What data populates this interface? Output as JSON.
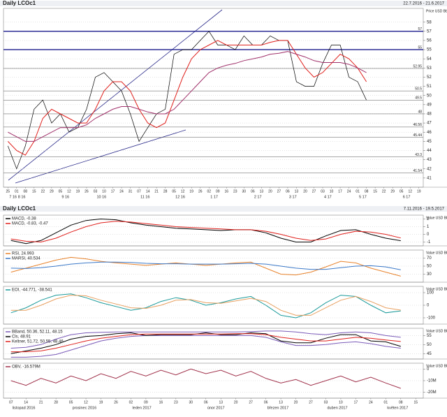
{
  "chart_data": [
    {
      "type": "line",
      "title": "Daily LCOc1",
      "subtitle": "22.7.2016 - 21.6.2017",
      "unit": "Price USD Bbl",
      "categories": [
        "25",
        "01",
        "08",
        "15",
        "22",
        "29",
        "05",
        "12",
        "19",
        "26",
        "03",
        "10",
        "17",
        "24",
        "31",
        "07",
        "14",
        "21",
        "28",
        "05",
        "12",
        "19",
        "26",
        "02",
        "09",
        "16",
        "23",
        "30",
        "06",
        "13",
        "20",
        "27",
        "06",
        "13",
        "20",
        "27",
        "03",
        "10",
        "17",
        "24",
        "01",
        "08",
        "15",
        "22",
        "29",
        "05",
        "12",
        "19"
      ],
      "month_labels": [
        "7 16",
        "8 16",
        null,
        null,
        null,
        null,
        "9 16",
        null,
        null,
        null,
        "10 16",
        null,
        null,
        null,
        null,
        "11 16",
        null,
        null,
        null,
        "12 16",
        null,
        null,
        null,
        "1 17",
        null,
        null,
        null,
        null,
        "2 17",
        null,
        null,
        null,
        "3 17",
        null,
        null,
        null,
        "4 17",
        null,
        null,
        null,
        "5 17",
        null,
        null,
        null,
        null,
        "6 17",
        null,
        null
      ],
      "series": [
        {
          "color": "#000000",
          "values": [
            44.5,
            42,
            44.5,
            48.5,
            49.5,
            47,
            48,
            46,
            46.5,
            48.5,
            52,
            52.5,
            51.5,
            50.5,
            48,
            45,
            46.5,
            48,
            48.5,
            54.5,
            55,
            55,
            56,
            57,
            55.5,
            55.5,
            55,
            56.5,
            55.5,
            55.5,
            56.5,
            56,
            56,
            51.5,
            51,
            51,
            53.5,
            55.5,
            55.5,
            52,
            51.5,
            49.5,
            null,
            null,
            null,
            null,
            null,
            null
          ]
        },
        {
          "color": "#e0201c",
          "values": [
            45,
            44,
            43.5,
            45,
            47.5,
            48.5,
            48,
            47.5,
            47,
            47,
            48.5,
            50.5,
            51.5,
            51.5,
            50.5,
            48.5,
            47,
            46.5,
            47,
            49.5,
            52,
            54,
            55,
            55.5,
            56,
            55.5,
            55.5,
            55.5,
            55.5,
            55.5,
            55.8,
            56,
            56,
            54.5,
            53,
            52,
            52.5,
            53.5,
            54.5,
            54,
            53,
            51.5,
            null,
            null,
            null,
            null,
            null,
            null
          ]
        },
        {
          "color": "#a0306a",
          "values": [
            46,
            45.5,
            45,
            45,
            45.5,
            46,
            46.5,
            46.5,
            46.5,
            46.8,
            47.5,
            48,
            48.5,
            48.8,
            48.8,
            48.5,
            48.2,
            48,
            48,
            48.5,
            49.5,
            50.5,
            51.5,
            52.5,
            53,
            53.3,
            53.5,
            53.8,
            54,
            54.2,
            54.5,
            54.6,
            54.8,
            54.5,
            54.2,
            53.8,
            53.6,
            53.6,
            53.6,
            53.4,
            53,
            52.5,
            null,
            null,
            null,
            null,
            null,
            null
          ]
        }
      ],
      "levels": [
        57,
        55,
        52.95,
        50.5,
        49.5,
        48,
        46.56,
        45.44,
        43.3,
        41.54
      ],
      "level_color": "#1a1a8c",
      "ylim": [
        40,
        59.5
      ],
      "yticks": [
        41,
        42,
        43,
        44,
        45,
        46,
        47,
        48,
        49,
        50,
        51,
        52,
        53,
        54,
        55,
        56,
        57,
        58
      ]
    },
    {
      "type": "line",
      "title": "Daily LCOc1",
      "subtitle": "7.11.2016 - 19.5.2017",
      "unit": "Value USD Bbl",
      "series": [
        {
          "name": "MACD, -0.38",
          "color": "#000000",
          "values": [
            -0.8,
            -1.2,
            -0.8,
            0.2,
            1.2,
            1.8,
            2.0,
            1.9,
            1.5,
            1.2,
            1.0,
            0.8,
            0.7,
            0.6,
            0.5,
            0.6,
            0.6,
            0.2,
            -0.5,
            -1.0,
            -1.0,
            -0.2,
            0.5,
            0.6,
            0.0,
            -0.5,
            -0.83,
            null
          ]
        },
        {
          "name": "MACD, -0.83, -0.47",
          "color": "#e0201c",
          "values": [
            -0.6,
            -0.9,
            -1.0,
            -0.5,
            0.3,
            1.0,
            1.5,
            1.7,
            1.6,
            1.4,
            1.2,
            1.0,
            0.9,
            0.8,
            0.7,
            0.6,
            0.6,
            0.4,
            0.0,
            -0.5,
            -0.8,
            -0.6,
            0.0,
            0.4,
            0.3,
            0.0,
            -0.47,
            null
          ]
        }
      ],
      "ylim": [
        -1.5,
        2.5
      ],
      "yticks": [
        -1,
        0,
        1,
        2
      ]
    },
    {
      "type": "line",
      "unit": "Value USD Bbl",
      "series": [
        {
          "name": "RSI, 24.993",
          "color": "#e8822a",
          "values": [
            35,
            45,
            55,
            65,
            72,
            68,
            62,
            58,
            55,
            52,
            55,
            58,
            55,
            52,
            55,
            58,
            60,
            45,
            30,
            28,
            35,
            48,
            62,
            58,
            45,
            35,
            25,
            null
          ]
        },
        {
          "name": "MARSI, 40.534",
          "color": "#3a78c8",
          "values": [
            45,
            44,
            46,
            50,
            55,
            58,
            60,
            60,
            59,
            57,
            56,
            56,
            55,
            55,
            55,
            56,
            57,
            55,
            50,
            45,
            42,
            42,
            46,
            50,
            51,
            48,
            41,
            null
          ]
        }
      ],
      "ylim": [
        10,
        90
      ],
      "yticks": [
        30,
        50,
        70
      ]
    },
    {
      "type": "line",
      "unit": "Value USD Bbl",
      "series": [
        {
          "name": "EOI, -44.771, -38.541",
          "color": "#1a9a9a",
          "values": [
            -60,
            -20,
            40,
            80,
            90,
            60,
            20,
            -10,
            -40,
            -20,
            30,
            60,
            40,
            0,
            20,
            50,
            70,
            0,
            -80,
            -100,
            -60,
            20,
            80,
            70,
            0,
            -60,
            -45,
            null
          ]
        },
        {
          "color": "#e8a060",
          "values": [
            -40,
            -40,
            0,
            50,
            80,
            75,
            40,
            10,
            -20,
            -25,
            0,
            40,
            45,
            20,
            15,
            35,
            55,
            30,
            -40,
            -80,
            -80,
            -20,
            40,
            70,
            30,
            -20,
            -39,
            null
          ]
        }
      ],
      "ylim": [
        -150,
        150
      ],
      "yticks": [
        -100,
        0,
        100
      ]
    },
    {
      "type": "line",
      "unit": "Value USD Bbl",
      "series": [
        {
          "name": "BBand, 50.36, 52.11, 48.15",
          "color": "#7a5ab8",
          "values": [
            48,
            48.5,
            50,
            53,
            55.5,
            56.5,
            56.8,
            57,
            57,
            57,
            57,
            57,
            57,
            57,
            57,
            57,
            57.2,
            57.5,
            57.5,
            57,
            56,
            55.5,
            56.5,
            57,
            56.5,
            55,
            54,
            null
          ]
        },
        {
          "color": "#7a5ab8",
          "values": [
            43,
            43,
            43.5,
            44.5,
            47,
            49.5,
            52,
            53.5,
            54.5,
            55,
            55,
            55,
            55,
            55,
            55,
            55,
            55,
            54,
            51.5,
            49.5,
            49.5,
            50,
            51,
            51.5,
            50.5,
            49,
            48,
            null
          ]
        },
        {
          "name": "Cls, 48.91",
          "color": "#000000",
          "values": [
            45,
            46.5,
            48,
            50,
            53,
            54.5,
            55,
            56,
            56.5,
            55,
            55.5,
            55.5,
            55.5,
            56.5,
            55.5,
            55.5,
            56.5,
            56,
            52,
            51,
            51,
            53.5,
            55.5,
            55.5,
            52,
            51.5,
            49,
            null
          ]
        },
        {
          "name": "Keltner, 51.72, 50.55, 48.46",
          "color": "#e0201c",
          "values": [
            46,
            46,
            46.5,
            48,
            50,
            52,
            53.5,
            54.5,
            55.5,
            55.8,
            55.8,
            55.8,
            55.8,
            55.8,
            55.8,
            56,
            56,
            55.5,
            54,
            53,
            52,
            52,
            53,
            54,
            53.5,
            52.5,
            51.7,
            null
          ]
        }
      ],
      "ylim": [
        42,
        59
      ],
      "yticks": [
        45,
        50,
        55
      ]
    },
    {
      "type": "line",
      "unit": "Value USD Bbl",
      "categories": [
        "07",
        "14",
        "21",
        "28",
        "05",
        "12",
        "19",
        "26",
        "02",
        "09",
        "16",
        "23",
        "30",
        "06",
        "13",
        "20",
        "27",
        "06",
        "13",
        "20",
        "27",
        "03",
        "10",
        "17",
        "24",
        "01",
        "08",
        "15"
      ],
      "month_labels": [
        "listopad 2016",
        null,
        null,
        null,
        "prosinec 2016",
        null,
        null,
        null,
        "leden 2017",
        null,
        null,
        null,
        null,
        "únor 2017",
        null,
        null,
        null,
        "březen 2017",
        null,
        null,
        null,
        "duben 2017",
        null,
        null,
        null,
        "květen 2017",
        null,
        null
      ],
      "series": [
        {
          "name": "OBV, -16.579M",
          "color": "#a0304a",
          "values": [
            -10,
            -14,
            -8,
            -12,
            -6,
            -10,
            -4,
            -8,
            -2,
            -6,
            -1,
            -5,
            0,
            -4,
            -1,
            -6,
            -2,
            -8,
            -12,
            -9,
            -14,
            -10,
            -6,
            -11,
            -7,
            -12,
            -16.6,
            null
          ]
        }
      ],
      "ylim": [
        -25,
        5
      ],
      "yticks": [
        {
          "value": -20,
          "label": "-20M"
        },
        {
          "value": -10,
          "label": "-10M"
        },
        0
      ]
    }
  ]
}
